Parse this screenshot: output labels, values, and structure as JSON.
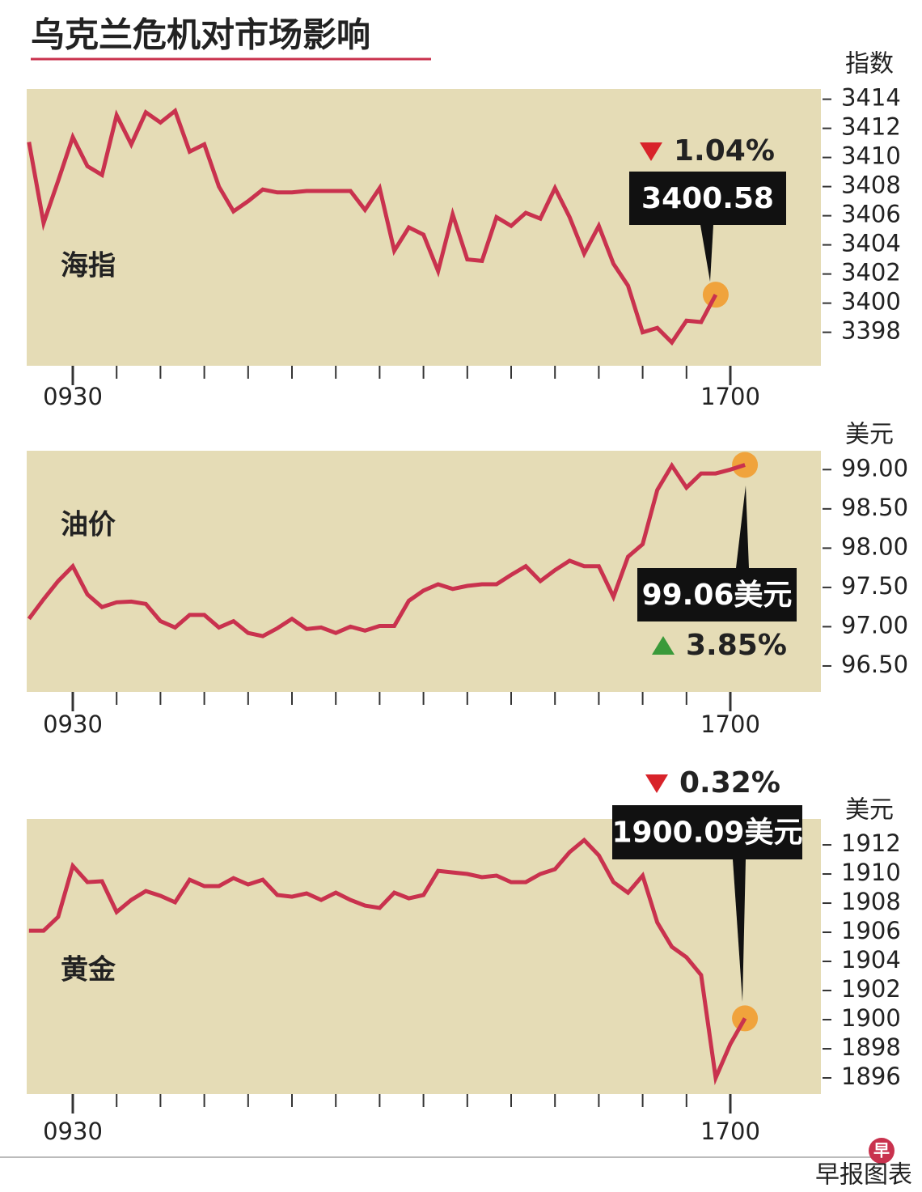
{
  "title": "乌克兰危机对市场影响",
  "footer": {
    "logo": "早",
    "source": "早报图表"
  },
  "chart_data": [
    {
      "type": "line",
      "unit": "指数",
      "line_width": 5,
      "background": "#e5dcb6",
      "categories": [
        null,
        null,
        null,
        "0930",
        null,
        null,
        null,
        null,
        null,
        null,
        null,
        null,
        null,
        null,
        null,
        null,
        null,
        null,
        null,
        null,
        null,
        null,
        null,
        null,
        null,
        null,
        null,
        null,
        null,
        null,
        null,
        null,
        null,
        null,
        null,
        null,
        null,
        null,
        null,
        null,
        null,
        null,
        null,
        null,
        null,
        null,
        null,
        null,
        "1700",
        null
      ],
      "series": [
        {
          "name": "海指",
          "color": "#c9324e",
          "marker_color": "#f0a33c",
          "values": [
            3411.06,
            3405.5,
            3408.4,
            3411.4,
            3409.4,
            3408.8,
            3412.9,
            3410.9,
            3413.1,
            3412.4,
            3413.2,
            3410.4,
            3410.9,
            3408.0,
            3406.3,
            3407.0,
            3407.8,
            3407.6,
            3407.6,
            3407.7,
            3407.7,
            3407.7,
            3407.7,
            3406.4,
            3407.9,
            3403.6,
            3405.2,
            3404.7,
            3402.2,
            3406.1,
            3403.0,
            3402.9,
            3405.9,
            3405.3,
            3406.2,
            3405.8,
            3407.9,
            3405.9,
            3403.4,
            3405.3,
            3402.7,
            3401.2,
            3398.0,
            3398.3,
            3397.3,
            3398.8,
            3398.7,
            3400.58,
            null,
            null
          ]
        }
      ],
      "change": "1.04%",
      "change_direction": "down",
      "ylim": [
        3395.7,
        3414.7
      ],
      "yticks": [
        3398,
        3400,
        3402,
        3404,
        3406,
        3408,
        3410,
        3412,
        3414
      ]
    },
    {
      "type": "line",
      "unit": "美元",
      "line_width": 5,
      "background": "#e5dcb6",
      "categories": [
        null,
        null,
        null,
        "0930",
        null,
        null,
        null,
        null,
        null,
        null,
        null,
        null,
        null,
        null,
        null,
        null,
        null,
        null,
        null,
        null,
        null,
        null,
        null,
        null,
        null,
        null,
        null,
        null,
        null,
        null,
        null,
        null,
        null,
        null,
        null,
        null,
        null,
        null,
        null,
        null,
        null,
        null,
        null,
        null,
        null,
        null,
        null,
        null,
        "1700",
        null
      ],
      "series": [
        {
          "name": "油价",
          "color": "#c9324e",
          "marker_color": "#f0a33c",
          "values": [
            97.1,
            97.35,
            97.58,
            97.77,
            97.41,
            97.25,
            97.31,
            97.32,
            97.29,
            97.07,
            96.99,
            97.15,
            97.15,
            96.99,
            97.07,
            96.92,
            96.88,
            96.98,
            97.1,
            96.97,
            96.99,
            96.92,
            97.0,
            96.95,
            97.01,
            97.01,
            97.33,
            97.46,
            97.54,
            97.48,
            97.52,
            97.54,
            97.54,
            97.66,
            97.77,
            97.58,
            97.72,
            97.84,
            97.77,
            97.77,
            97.38,
            97.89,
            98.05,
            98.74,
            99.05,
            98.77,
            98.95,
            98.95,
            99.0,
            99.06
          ],
          "value_labels": [
            null,
            null,
            null,
            null,
            null,
            null,
            null,
            null,
            null,
            null,
            null,
            null,
            null,
            null,
            null,
            null,
            null,
            null,
            null,
            null,
            null,
            null,
            null,
            null,
            null,
            null,
            null,
            null,
            null,
            null,
            null,
            null,
            null,
            null,
            null,
            null,
            null,
            null,
            null,
            null,
            null,
            null,
            null,
            null,
            null,
            null,
            null,
            null,
            null,
            "99.06美元"
          ]
        }
      ],
      "change": "3.85%",
      "change_direction": "up",
      "ylim": [
        96.17,
        99.24
      ],
      "yticks": [
        {
          "value": 96.5,
          "label": "96.50"
        },
        {
          "value": 97,
          "label": "97.00"
        },
        {
          "value": 97.5,
          "label": "97.50"
        },
        {
          "value": 98,
          "label": "98.00"
        },
        {
          "value": 98.5,
          "label": "98.50"
        },
        {
          "value": 99,
          "label": "99.00"
        }
      ]
    },
    {
      "type": "line",
      "unit": "美元",
      "line_width": 5,
      "background": "#e5dcb6",
      "categories": [
        null,
        null,
        null,
        "0930",
        null,
        null,
        null,
        null,
        null,
        null,
        null,
        null,
        null,
        null,
        null,
        null,
        null,
        null,
        null,
        null,
        null,
        null,
        null,
        null,
        null,
        null,
        null,
        null,
        null,
        null,
        null,
        null,
        null,
        null,
        null,
        null,
        null,
        null,
        null,
        null,
        null,
        null,
        null,
        null,
        null,
        null,
        null,
        null,
        "1700",
        null
      ],
      "series": [
        {
          "name": "黄金",
          "color": "#c9324e",
          "marker_color": "#f0a33c",
          "values": [
            1906.11,
            1906.11,
            1907.06,
            1910.56,
            1909.44,
            1909.5,
            1907.39,
            1908.22,
            1908.83,
            1908.5,
            1908.06,
            1909.61,
            1909.17,
            1909.17,
            1909.72,
            1909.28,
            1909.61,
            1908.56,
            1908.44,
            1908.67,
            1908.22,
            1908.72,
            1908.22,
            1907.83,
            1907.67,
            1908.72,
            1908.33,
            1908.56,
            1910.22,
            1910.11,
            1910.0,
            1909.78,
            1909.89,
            1909.44,
            1909.44,
            1910.0,
            1910.33,
            1911.5,
            1912.33,
            1911.28,
            1909.44,
            1908.72,
            1909.89,
            1906.67,
            1905.0,
            1904.28,
            1903.06,
            1896.0,
            1898.33,
            1900.09
          ],
          "value_labels": [
            null,
            null,
            null,
            null,
            null,
            null,
            null,
            null,
            null,
            null,
            null,
            null,
            null,
            null,
            null,
            null,
            null,
            null,
            null,
            null,
            null,
            null,
            null,
            null,
            null,
            null,
            null,
            null,
            null,
            null,
            null,
            null,
            null,
            null,
            null,
            null,
            null,
            null,
            null,
            null,
            null,
            null,
            null,
            null,
            null,
            null,
            null,
            null,
            null,
            "1900.09美元"
          ]
        }
      ],
      "change": "0.32%",
      "change_direction": "down",
      "ylim": [
        1894.89,
        1913.78
      ],
      "yticks": [
        1896,
        1898,
        1900,
        1902,
        1904,
        1906,
        1908,
        1910,
        1912
      ]
    }
  ]
}
